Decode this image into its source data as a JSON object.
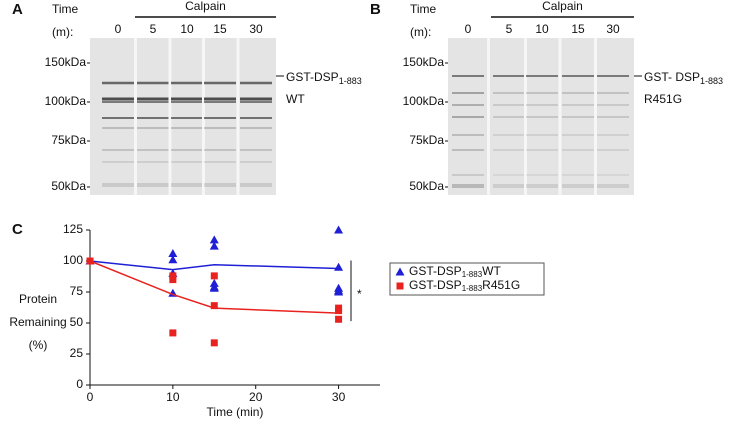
{
  "panels": {
    "a": {
      "label": "A",
      "time_label": "Time",
      "time_unit": "(m):",
      "treatment": "Calpain",
      "lanes": [
        "0",
        "5",
        "10",
        "15",
        "30"
      ],
      "markers": [
        "150kDa",
        "100kDa",
        "75kDa",
        "50kDa"
      ],
      "band_label": "GST-DSP",
      "band_sub": "1-883",
      "variant": "WT"
    },
    "b": {
      "label": "B",
      "time_label": "Time",
      "time_unit": "(m):",
      "treatment": "Calpain",
      "lanes": [
        "0",
        "5",
        "10",
        "15",
        "30"
      ],
      "markers": [
        "150kDa",
        "100kDa",
        "75kDa",
        "50kDa"
      ],
      "band_label": "GST- DSP",
      "band_sub": "1-883",
      "variant": "R451G"
    }
  },
  "chart_data": {
    "type": "line",
    "label": "C",
    "x_label": "Time (min)",
    "y_label": [
      "Protein",
      "Remaining",
      "(%)"
    ],
    "xlim": [
      0,
      35
    ],
    "xticks": [
      0,
      10,
      20,
      30
    ],
    "ylim": [
      0,
      125
    ],
    "yticks": [
      0,
      25,
      50,
      75,
      100,
      125
    ],
    "annotation": "*",
    "series": [
      {
        "name": "GST-DSP",
        "name_sub": "1-883",
        "name_suffix": "WT",
        "color": "#1f1fd6",
        "marker": "triangle",
        "x": [
          0,
          10,
          15,
          30
        ],
        "values": [
          100,
          93,
          97,
          94
        ],
        "points": {
          "x": [
            0,
            10,
            10,
            10,
            10,
            15,
            15,
            15,
            15,
            15,
            30,
            30,
            30,
            30,
            30
          ],
          "values": [
            100,
            106,
            101,
            90,
            74,
            117,
            112,
            82,
            79,
            78,
            125,
            95,
            78,
            76,
            75
          ]
        }
      },
      {
        "name": "GST-DSP",
        "name_sub": "1-883",
        "name_suffix": "R451G",
        "color": "#e8231f",
        "marker": "square",
        "x": [
          0,
          10,
          15,
          30
        ],
        "values": [
          100,
          73,
          62,
          58
        ],
        "points": {
          "x": [
            0,
            10,
            10,
            10,
            15,
            15,
            15,
            30,
            30,
            30
          ],
          "values": [
            100,
            88,
            85,
            42,
            88,
            64,
            34,
            62,
            60,
            53
          ]
        }
      }
    ]
  }
}
